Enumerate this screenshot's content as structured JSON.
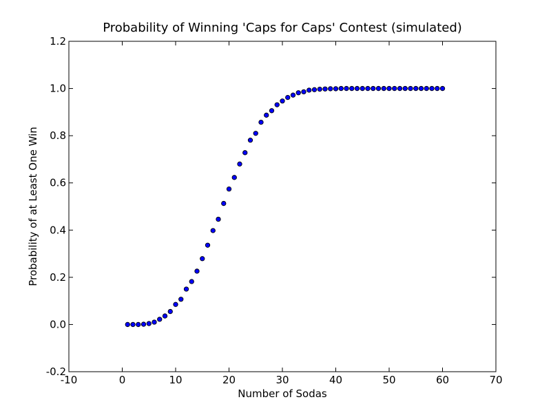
{
  "chart_data": {
    "type": "scatter",
    "title": "Probability of Winning 'Caps for Caps' Contest (simulated)",
    "xlabel": "Number of Sodas",
    "ylabel": "Probability of at Least One Win",
    "xlim": [
      -10,
      70
    ],
    "ylim": [
      -0.2,
      1.2
    ],
    "xticks": [
      -10,
      0,
      10,
      20,
      30,
      40,
      50,
      60,
      70
    ],
    "yticks": [
      -0.2,
      0.0,
      0.2,
      0.4,
      0.6,
      0.8,
      1.0,
      1.2
    ],
    "xtick_labels": [
      "-10",
      "0",
      "10",
      "20",
      "30",
      "40",
      "50",
      "60",
      "70"
    ],
    "ytick_labels": [
      "-0.2",
      "0.0",
      "0.2",
      "0.4",
      "0.6",
      "0.8",
      "1.0",
      "1.2"
    ],
    "grid": false,
    "marker_color": "#0000ff",
    "marker_edge_color": "#000000",
    "series": [
      {
        "x": [
          1,
          2,
          3,
          4,
          5,
          6,
          7,
          8,
          9,
          10,
          11,
          12,
          13,
          14,
          15,
          16,
          17,
          18,
          19,
          20,
          21,
          22,
          23,
          24,
          25,
          26,
          27,
          28,
          29,
          30,
          31,
          32,
          33,
          34,
          35,
          36,
          37,
          38,
          39,
          40,
          41,
          42,
          43,
          44,
          45,
          46,
          47,
          48,
          49,
          50,
          51,
          52,
          53,
          54,
          55,
          56,
          57,
          58,
          59,
          60
        ],
        "y": [
          0.0,
          0.0,
          0.0,
          0.001,
          0.004,
          0.01,
          0.022,
          0.036,
          0.055,
          0.085,
          0.107,
          0.15,
          0.182,
          0.226,
          0.279,
          0.336,
          0.398,
          0.446,
          0.513,
          0.574,
          0.623,
          0.68,
          0.728,
          0.781,
          0.81,
          0.857,
          0.887,
          0.906,
          0.931,
          0.947,
          0.962,
          0.972,
          0.982,
          0.986,
          0.993,
          0.995,
          0.997,
          0.998,
          0.999,
          0.999,
          1.0,
          1.0,
          1.0,
          1.0,
          1.0,
          1.0,
          1.0,
          1.0,
          1.0,
          1.0,
          1.0,
          1.0,
          1.0,
          1.0,
          1.0,
          1.0,
          1.0,
          1.0,
          1.0,
          1.0
        ]
      }
    ]
  }
}
